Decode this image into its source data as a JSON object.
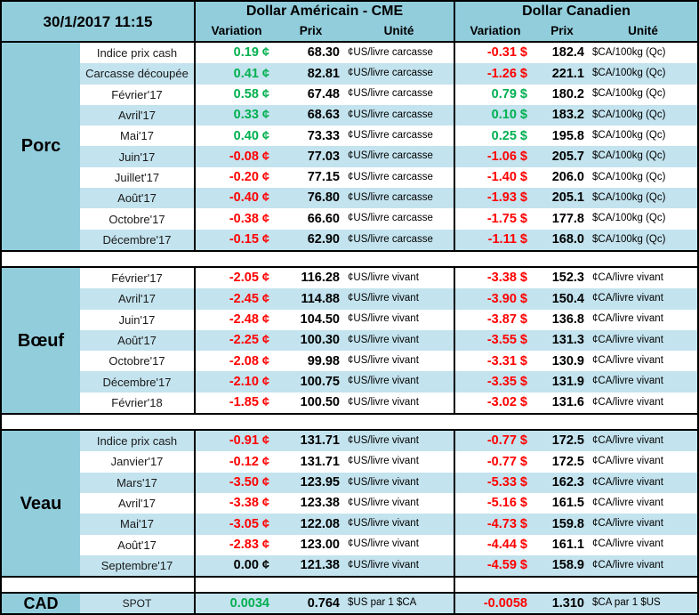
{
  "header": {
    "datetime": "30/1/2017 11:15",
    "us_group": "Dollar Américain - CME",
    "ca_group": "Dollar Canadien",
    "subcols": [
      "Variation",
      "Prix",
      "Unité"
    ]
  },
  "colors": {
    "header_bg": "#92CDDC",
    "band_bg": "#C3E3EE",
    "positive": "#00B050",
    "negative": "#FF0000"
  },
  "sections": [
    {
      "name": "Porc",
      "us_unit": "¢US/livre carcasse",
      "ca_unit": "$CA/100kg (Qc)",
      "first_row_shaded": false,
      "rows": [
        {
          "label": "Indice prix cash",
          "us_var": "0.19 ¢",
          "us_prix": "68.30",
          "ca_var": "-0.31 $",
          "ca_prix": "182.4"
        },
        {
          "label": "Carcasse découpée",
          "us_var": "0.41 ¢",
          "us_prix": "82.81",
          "ca_var": "-1.26 $",
          "ca_prix": "221.1"
        },
        {
          "label": "Février'17",
          "us_var": "0.58 ¢",
          "us_prix": "67.48",
          "ca_var": "0.79 $",
          "ca_prix": "180.2"
        },
        {
          "label": "Avril'17",
          "us_var": "0.33 ¢",
          "us_prix": "68.63",
          "ca_var": "0.10 $",
          "ca_prix": "183.2"
        },
        {
          "label": "Mai'17",
          "us_var": "0.40 ¢",
          "us_prix": "73.33",
          "ca_var": "0.25 $",
          "ca_prix": "195.8"
        },
        {
          "label": "Juin'17",
          "us_var": "-0.08 ¢",
          "us_prix": "77.03",
          "ca_var": "-1.06 $",
          "ca_prix": "205.7"
        },
        {
          "label": "Juillet'17",
          "us_var": "-0.20 ¢",
          "us_prix": "77.15",
          "ca_var": "-1.40 $",
          "ca_prix": "206.0"
        },
        {
          "label": "Août'17",
          "us_var": "-0.40 ¢",
          "us_prix": "76.80",
          "ca_var": "-1.93 $",
          "ca_prix": "205.1"
        },
        {
          "label": "Octobre'17",
          "us_var": "-0.38 ¢",
          "us_prix": "66.60",
          "ca_var": "-1.75 $",
          "ca_prix": "177.8"
        },
        {
          "label": "Décembre'17",
          "us_var": "-0.15 ¢",
          "us_prix": "62.90",
          "ca_var": "-1.11 $",
          "ca_prix": "168.0"
        }
      ]
    },
    {
      "name": "Bœuf",
      "us_unit": "¢US/livre vivant",
      "ca_unit": "¢CA/livre vivant",
      "first_row_shaded": false,
      "rows": [
        {
          "label": "Février'17",
          "us_var": "-2.05 ¢",
          "us_prix": "116.28",
          "ca_var": "-3.38 $",
          "ca_prix": "152.3"
        },
        {
          "label": "Avril'17",
          "us_var": "-2.45 ¢",
          "us_prix": "114.88",
          "ca_var": "-3.90 $",
          "ca_prix": "150.4"
        },
        {
          "label": "Juin'17",
          "us_var": "-2.48 ¢",
          "us_prix": "104.50",
          "ca_var": "-3.87 $",
          "ca_prix": "136.8"
        },
        {
          "label": "Août'17",
          "us_var": "-2.25 ¢",
          "us_prix": "100.30",
          "ca_var": "-3.55 $",
          "ca_prix": "131.3"
        },
        {
          "label": "Octobre'17",
          "us_var": "-2.08 ¢",
          "us_prix": "99.98",
          "ca_var": "-3.31 $",
          "ca_prix": "130.9"
        },
        {
          "label": "Décembre'17",
          "us_var": "-2.10 ¢",
          "us_prix": "100.75",
          "ca_var": "-3.35 $",
          "ca_prix": "131.9"
        },
        {
          "label": "Février'18",
          "us_var": "-1.85 ¢",
          "us_prix": "100.50",
          "ca_var": "-3.02 $",
          "ca_prix": "131.6"
        }
      ]
    },
    {
      "name": "Veau",
      "us_unit": "¢US/livre vivant",
      "ca_unit": "¢CA/livre vivant",
      "first_row_shaded": true,
      "rows": [
        {
          "label": "Indice prix cash",
          "us_var": "-0.91 ¢",
          "us_prix": "131.71",
          "ca_var": "-0.77 $",
          "ca_prix": "172.5"
        },
        {
          "label": "Janvier'17",
          "us_var": "-0.12 ¢",
          "us_prix": "131.71",
          "ca_var": "-0.77 $",
          "ca_prix": "172.5"
        },
        {
          "label": "Mars'17",
          "us_var": "-3.50 ¢",
          "us_prix": "123.95",
          "ca_var": "-5.33 $",
          "ca_prix": "162.3"
        },
        {
          "label": "Avril'17",
          "us_var": "-3.38 ¢",
          "us_prix": "123.38",
          "ca_var": "-5.16 $",
          "ca_prix": "161.5"
        },
        {
          "label": "Mai'17",
          "us_var": "-3.05 ¢",
          "us_prix": "122.08",
          "ca_var": "-4.73 $",
          "ca_prix": "159.8"
        },
        {
          "label": "Août'17",
          "us_var": "-2.83 ¢",
          "us_prix": "123.00",
          "ca_var": "-4.44 $",
          "ca_prix": "161.1"
        },
        {
          "label": "Septembre'17",
          "us_var": "0.00 ¢",
          "us_prix": "121.38",
          "ca_var": "-4.59 $",
          "ca_prix": "158.9"
        }
      ]
    }
  ],
  "cad_row": {
    "name": "CAD",
    "label": "SPOT",
    "us_var": "0.0034",
    "us_prix": "0.764",
    "us_unit": "$US par 1 $CA",
    "ca_var": "-0.0058",
    "ca_prix": "1.310",
    "ca_unit": "$CA par 1 $US"
  }
}
